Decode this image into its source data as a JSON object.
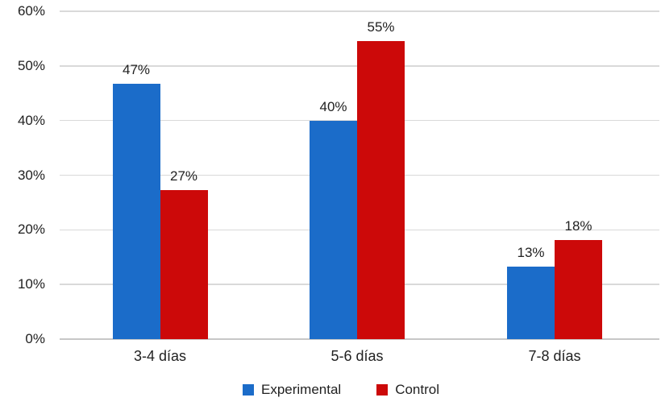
{
  "chart_data": {
    "type": "bar",
    "title": "",
    "xlabel": "",
    "ylabel": "",
    "categories": [
      "3-4 días",
      "5-6 días",
      "7-8 días"
    ],
    "series": [
      {
        "name": "Experimental",
        "color": "#1b6cc9",
        "values": [
          47,
          40,
          13
        ],
        "precise_values": [
          46.7,
          40.0,
          13.3
        ],
        "labels": [
          "47%",
          "40%",
          "13%"
        ]
      },
      {
        "name": "Control",
        "color": "#cc0909",
        "values": [
          27,
          55,
          18
        ],
        "precise_values": [
          27.3,
          54.5,
          18.2
        ],
        "labels": [
          "27%",
          "55%",
          "18%"
        ]
      }
    ],
    "ylim": [
      0,
      60
    ],
    "ytick_step": 10,
    "ytick_labels": [
      "0%",
      "10%",
      "20%",
      "30%",
      "40%",
      "50%",
      "60%"
    ],
    "grid": true,
    "legend_position": "bottom",
    "colors": {
      "background": "#ffffff",
      "gridline": "#d9d9d9",
      "axis_line": "#c7c7c7",
      "text": "#212121"
    }
  }
}
